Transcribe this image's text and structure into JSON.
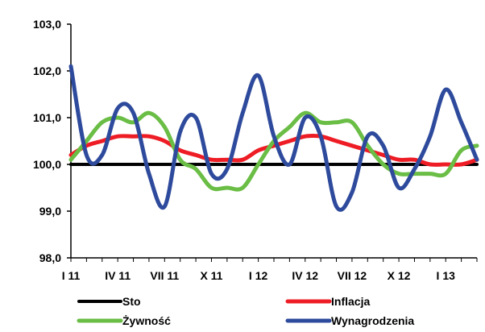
{
  "chart_data": {
    "type": "line",
    "title": "",
    "xlabel": "",
    "ylabel": "",
    "ylim": [
      98.0,
      103.0
    ],
    "yticks": [
      "98,0",
      "99,0",
      "100,0",
      "101,0",
      "102,0",
      "103,0"
    ],
    "ytick_values": [
      98,
      99,
      100,
      101,
      102,
      103
    ],
    "xticks": [
      "I 11",
      "IV 11",
      "VII 11",
      "X 11",
      "I 12",
      "IV 12",
      "VII 12",
      "X 12",
      "I 13"
    ],
    "xtick_values": [
      0,
      3,
      6,
      9,
      12,
      15,
      18,
      21,
      24
    ],
    "xlim": [
      0,
      26
    ],
    "legend_position": "bottom",
    "series": [
      {
        "name": "Sto",
        "color": "#000000",
        "x": [
          0,
          26
        ],
        "values": [
          100.0,
          100.0
        ]
      },
      {
        "name": "Inflacja",
        "color": "#ee1c25",
        "x": [
          0,
          1,
          2,
          3,
          4,
          5,
          6,
          7,
          8,
          9,
          10,
          11,
          12,
          13,
          14,
          15,
          16,
          17,
          18,
          19,
          20,
          21,
          22,
          23,
          24,
          25,
          26
        ],
        "values": [
          100.2,
          100.4,
          100.5,
          100.6,
          100.6,
          100.6,
          100.5,
          100.3,
          100.2,
          100.1,
          100.1,
          100.1,
          100.3,
          100.4,
          100.5,
          100.6,
          100.6,
          100.5,
          100.4,
          100.3,
          100.2,
          100.1,
          100.1,
          100.0,
          100.0,
          100.0,
          100.1
        ]
      },
      {
        "name": "Żywność",
        "color": "#6abd45",
        "x": [
          0,
          1,
          2,
          3,
          4,
          5,
          6,
          7,
          8,
          9,
          10,
          11,
          12,
          13,
          14,
          15,
          16,
          17,
          18,
          19,
          20,
          21,
          22,
          23,
          24,
          25,
          26
        ],
        "values": [
          100.1,
          100.5,
          100.9,
          101.0,
          100.9,
          101.1,
          100.8,
          100.1,
          99.9,
          99.5,
          99.5,
          99.5,
          100.0,
          100.5,
          100.8,
          101.1,
          100.9,
          100.9,
          100.9,
          100.4,
          100.0,
          99.8,
          99.8,
          99.8,
          99.8,
          100.3,
          100.4
        ]
      },
      {
        "name": "Wynagrodzenia",
        "color": "#2e4a9c",
        "x": [
          0,
          1,
          2,
          3,
          4,
          5,
          6,
          7,
          8,
          9,
          10,
          11,
          12,
          13,
          14,
          15,
          16,
          17,
          18,
          19,
          20,
          21,
          22,
          23,
          24,
          25,
          26
        ],
        "values": [
          102.1,
          100.2,
          100.2,
          101.2,
          101.1,
          99.8,
          99.1,
          100.7,
          101.0,
          99.8,
          99.9,
          101.1,
          101.9,
          100.6,
          100.0,
          101.0,
          100.6,
          99.1,
          99.4,
          100.6,
          100.4,
          99.5,
          99.9,
          100.6,
          101.6,
          100.9,
          100.1
        ]
      }
    ]
  }
}
